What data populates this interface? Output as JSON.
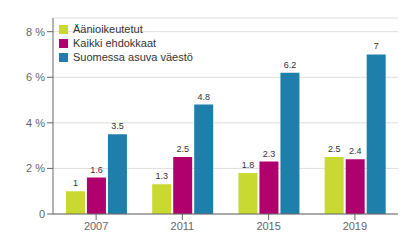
{
  "chart_data": {
    "type": "bar",
    "categories": [
      "2007",
      "2011",
      "2015",
      "2019"
    ],
    "series": [
      {
        "name": "Äänioikeutetut",
        "color": "#c8d932",
        "values": [
          1,
          1.3,
          1.8,
          2.5
        ]
      },
      {
        "name": "Kaikki ehdokkaat",
        "color": "#b0006e",
        "values": [
          1.6,
          2.5,
          2.3,
          2.4
        ]
      },
      {
        "name": "Suomessa asuva väestö",
        "color": "#1e7faa",
        "values": [
          3.5,
          4.8,
          6.2,
          7
        ]
      }
    ],
    "ylim": [
      0,
      8.6
    ],
    "yticks": [
      0,
      {
        "value": 2,
        "label": "2 %"
      },
      {
        "value": 4,
        "label": "4 %"
      },
      {
        "value": 6,
        "label": "6 %"
      },
      {
        "value": 8,
        "label": "8 %"
      }
    ],
    "grid": true,
    "legend": "upper left",
    "data_labels": true
  }
}
